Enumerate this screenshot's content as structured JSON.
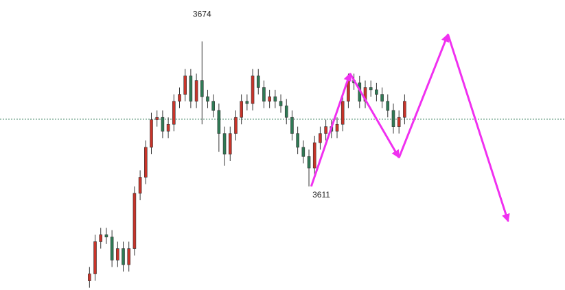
{
  "chart_data": {
    "type": "candlestick",
    "up_color": "#c8342a",
    "down_color": "#2f7a55",
    "ylim": [
      3566,
      3692
    ],
    "xlim": [
      -15.9,
      84.5
    ],
    "open": [
      3570,
      3573,
      3587,
      3590,
      3589,
      3579,
      3584,
      3577,
      3584,
      3608,
      3615,
      3628,
      3640,
      3641,
      3635,
      3638,
      3648,
      3651,
      3659,
      3648,
      3657,
      3650,
      3648,
      3644,
      3634,
      3625,
      3634,
      3641,
      3648,
      3647,
      3659,
      3654,
      3648,
      3650,
      3648,
      3646,
      3641,
      3634,
      3628,
      3624,
      3619,
      3630,
      3634,
      3637,
      3635,
      3638,
      3648,
      3657,
      3656,
      3648,
      3654,
      3653,
      3651,
      3648,
      3644,
      3637,
      3641
    ],
    "high": [
      3576,
      3590,
      3593,
      3593,
      3592,
      3587,
      3587,
      3587,
      3611,
      3618,
      3631,
      3643,
      3644,
      3644,
      3641,
      3651,
      3654,
      3662,
      3662,
      3660,
      3674,
      3653,
      3651,
      3647,
      3637,
      3637,
      3644,
      3651,
      3651,
      3662,
      3662,
      3657,
      3653,
      3653,
      3651,
      3649,
      3644,
      3637,
      3631,
      3627,
      3633,
      3637,
      3640,
      3640,
      3641,
      3651,
      3660,
      3660,
      3659,
      3657,
      3657,
      3656,
      3654,
      3651,
      3647,
      3644,
      3651
    ],
    "low": [
      3567,
      3570,
      3584,
      3586,
      3576,
      3576,
      3574,
      3574,
      3581,
      3605,
      3612,
      3625,
      3637,
      3632,
      3632,
      3635,
      3645,
      3648,
      3645,
      3645,
      3638,
      3645,
      3641,
      3626,
      3620,
      3622,
      3631,
      3638,
      3644,
      3644,
      3651,
      3645,
      3645,
      3645,
      3643,
      3638,
      3631,
      3625,
      3621,
      3611,
      3616,
      3627,
      3631,
      3632,
      3632,
      3635,
      3645,
      3653,
      3645,
      3645,
      3650,
      3648,
      3645,
      3641,
      3634,
      3634,
      3638
    ],
    "close": [
      3573,
      3587,
      3590,
      3589,
      3579,
      3584,
      3577,
      3584,
      3608,
      3615,
      3628,
      3640,
      3641,
      3635,
      3638,
      3648,
      3651,
      3659,
      3648,
      3657,
      3650,
      3648,
      3644,
      3634,
      3625,
      3634,
      3641,
      3648,
      3647,
      3659,
      3654,
      3648,
      3650,
      3648,
      3646,
      3641,
      3634,
      3628,
      3624,
      3619,
      3630,
      3634,
      3637,
      3635,
      3638,
      3648,
      3657,
      3656,
      3648,
      3654,
      3653,
      3651,
      3648,
      3644,
      3637,
      3641,
      3648
    ],
    "reference_line": 3640.2,
    "annotations": [
      {
        "text": "3674",
        "x": 20,
        "y": 3674
      },
      {
        "text": "3611",
        "x": 39,
        "y": 3611
      }
    ],
    "projection": {
      "color": "#f030f0",
      "x": [
        39.4,
        46.3,
        55,
        63.7,
        74.4
      ],
      "y": [
        3611,
        3660.1,
        3623.5,
        3677.1,
        3595.8
      ]
    }
  }
}
